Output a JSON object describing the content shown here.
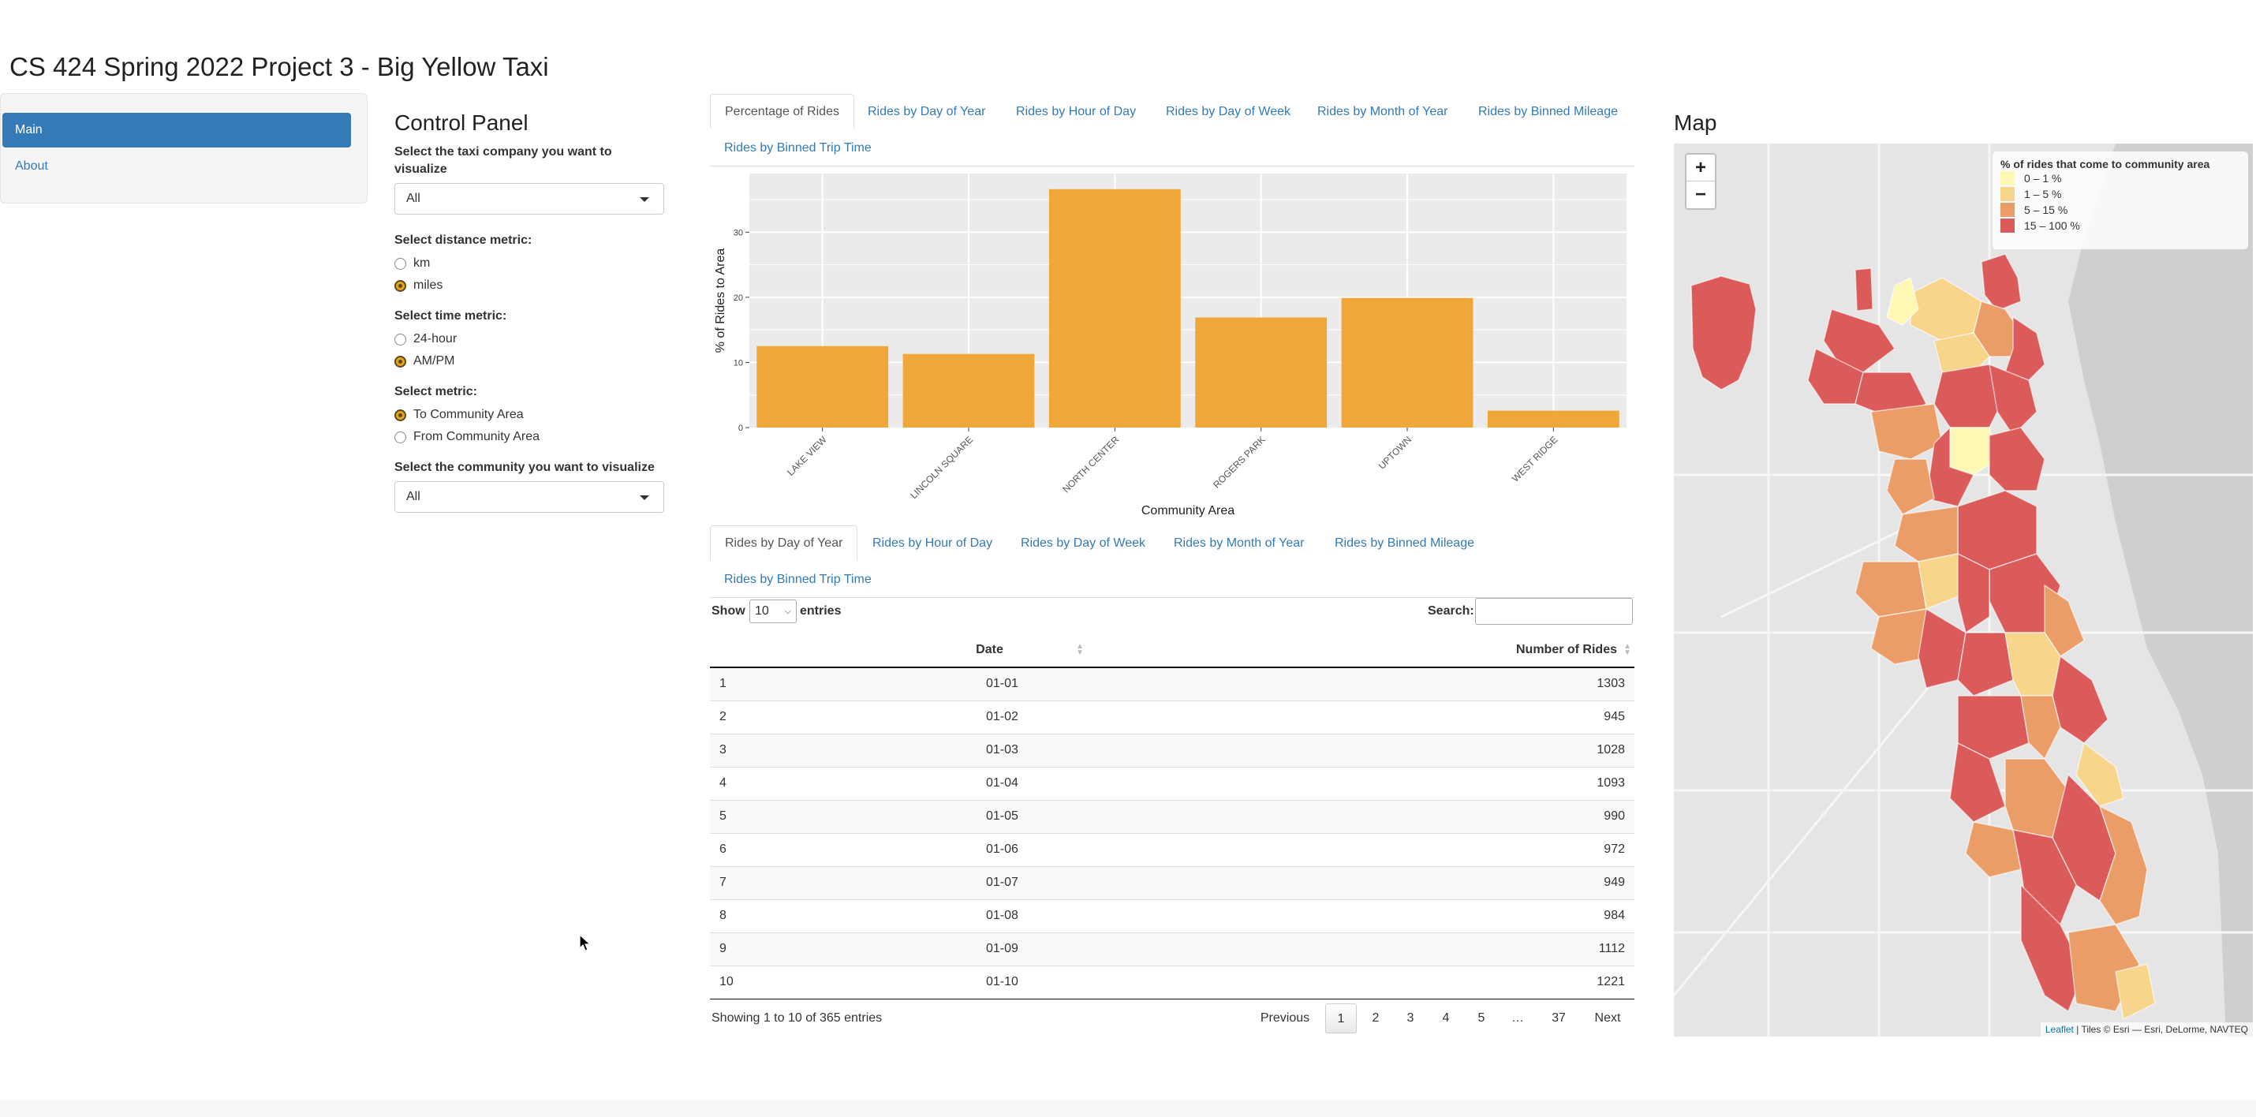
{
  "app_title": "CS 424 Spring 2022 Project 3 - Big Yellow Taxi",
  "sidebar": {
    "items": [
      {
        "label": "Main",
        "active": true
      },
      {
        "label": "About",
        "active": false
      }
    ]
  },
  "control_panel": {
    "title": "Control Panel",
    "company_label": "Select the taxi company you want to visualize",
    "company_value": "All",
    "distance_label": "Select distance metric:",
    "distance_options": [
      {
        "label": "km",
        "checked": false
      },
      {
        "label": "miles",
        "checked": true
      }
    ],
    "time_label": "Select time metric:",
    "time_options": [
      {
        "label": "24-hour",
        "checked": false
      },
      {
        "label": "AM/PM",
        "checked": true
      }
    ],
    "metric_label": "Select metric:",
    "metric_options": [
      {
        "label": "To Community Area",
        "checked": true
      },
      {
        "label": "From Community Area",
        "checked": false
      }
    ],
    "community_label": "Select the community you want to visualize",
    "community_value": "All"
  },
  "top_tabs": [
    "Percentage of Rides",
    "Rides by Day of Year",
    "Rides by Hour of Day",
    "Rides by Day of Week",
    "Rides by Month of Year",
    "Rides by Binned Mileage",
    "Rides by Binned Trip Time"
  ],
  "bottom_tabs": [
    "Rides by Day of Year",
    "Rides by Hour of Day",
    "Rides by Day of Week",
    "Rides by Month of Year",
    "Rides by Binned Mileage",
    "Rides by Binned Trip Time"
  ],
  "chart_data": {
    "type": "bar",
    "categories": [
      "LAKE VIEW",
      "LINCOLN SQUARE",
      "NORTH CENTER",
      "ROGERS PARK",
      "UPTOWN",
      "WEST RIDGE"
    ],
    "values": [
      12.5,
      11.3,
      36.6,
      16.9,
      19.9,
      2.6
    ],
    "xlabel": "Community Area",
    "ylabel": "% of Rides to Area",
    "ylim": [
      0,
      39
    ],
    "yticks": [
      0,
      10,
      20,
      30
    ],
    "bar_color": "#f0a73a",
    "panel_color": "#ebebeb",
    "grid": true
  },
  "table": {
    "show_label": "Show",
    "entries_value": "10",
    "entries_label": "entries",
    "search_label": "Search:",
    "columns": [
      "",
      "Date",
      "Number of Rides"
    ],
    "rows": [
      {
        "idx": "1",
        "date": "01-01",
        "rides": "1303"
      },
      {
        "idx": "2",
        "date": "01-02",
        "rides": "945"
      },
      {
        "idx": "3",
        "date": "01-03",
        "rides": "1028"
      },
      {
        "idx": "4",
        "date": "01-04",
        "rides": "1093"
      },
      {
        "idx": "5",
        "date": "01-05",
        "rides": "990"
      },
      {
        "idx": "6",
        "date": "01-06",
        "rides": "972"
      },
      {
        "idx": "7",
        "date": "01-07",
        "rides": "949"
      },
      {
        "idx": "8",
        "date": "01-08",
        "rides": "984"
      },
      {
        "idx": "9",
        "date": "01-09",
        "rides": "1112"
      },
      {
        "idx": "10",
        "date": "01-10",
        "rides": "1221"
      }
    ],
    "info": "Showing 1 to 10 of 365 entries",
    "pagination": {
      "previous": "Previous",
      "pages": [
        "1",
        "2",
        "3",
        "4",
        "5",
        "…",
        "37"
      ],
      "current": "1",
      "next": "Next"
    }
  },
  "map": {
    "title": "Map",
    "zoom_in": "+",
    "zoom_out": "−",
    "legend_title": "% of rides that come to community area",
    "legend": [
      {
        "label": "0 – 1 %",
        "color": "#fff7b4"
      },
      {
        "label": "1 – 5 %",
        "color": "#f7d68c"
      },
      {
        "label": "5 – 15 %",
        "color": "#eb9d68"
      },
      {
        "label": "15 – 100 %",
        "color": "#db5a5a"
      }
    ],
    "attribution_link": "Leaflet",
    "attribution_text": " | Tiles © Esri — Esri, DeLorme, NAVTEQ",
    "lake_color": "#cfcfcf",
    "land_color": "#e6e6e6"
  }
}
